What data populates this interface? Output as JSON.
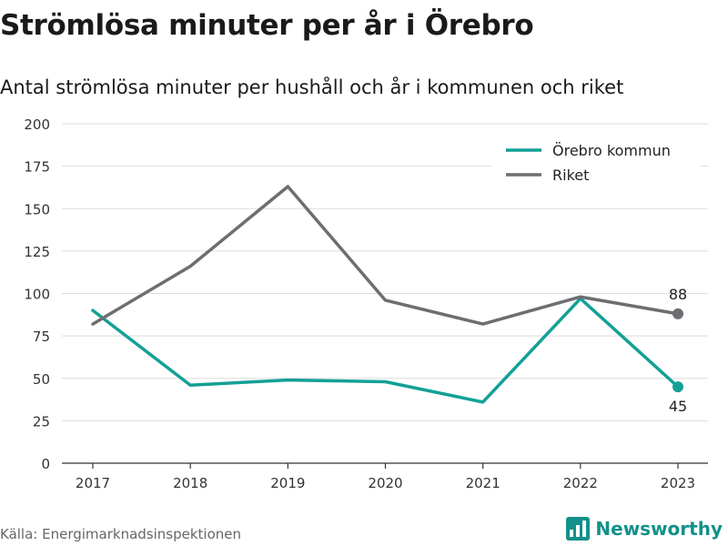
{
  "title": "Strömlösa minuter per år i Örebro",
  "subtitle": "Antal strömlösa minuter per hushåll och år i kommunen och riket",
  "source": "Källa: Energimarknadsinspektionen",
  "brand": {
    "name": "Newsworthy",
    "color": "#13918a"
  },
  "chart_data": {
    "type": "line",
    "categories": [
      "2017",
      "2018",
      "2019",
      "2020",
      "2021",
      "2022",
      "2023"
    ],
    "ylim": [
      0,
      200
    ],
    "yticks": [
      0,
      25,
      50,
      75,
      100,
      125,
      150,
      175,
      200
    ],
    "grid": true,
    "legend_position": "top-right",
    "series": [
      {
        "name": "Örebro kommun",
        "color": "#13a096",
        "values": [
          90,
          46,
          49,
          48,
          36,
          97,
          45
        ],
        "end_label": "45"
      },
      {
        "name": "Riket",
        "color": "#6d6d72",
        "values": [
          82,
          116,
          163,
          96,
          82,
          98,
          88
        ],
        "end_label": "88"
      }
    ]
  }
}
